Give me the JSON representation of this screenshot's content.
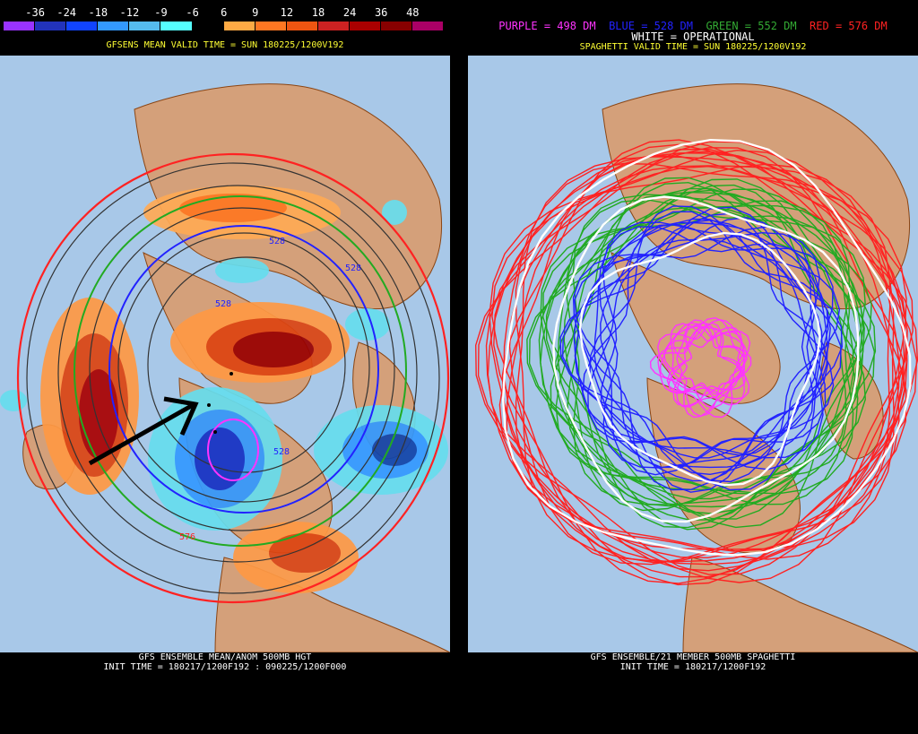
{
  "left_panel": {
    "legend_labels": [
      "-36",
      "-24",
      "-18",
      "-12",
      "-9",
      "-6",
      "6",
      "9",
      "12",
      "18",
      "24",
      "36",
      "48"
    ],
    "legend_colors": [
      "#9933ff",
      "#2233bb",
      "#1144ff",
      "#3399ff",
      "#55bbee",
      "#55ffff",
      "#000000",
      "#ffaa44",
      "#ff7722",
      "#ee5511",
      "#cc2222",
      "#aa0000",
      "#880000",
      "#aa0066"
    ],
    "header": "GFSENS MEAN VALID TIME = SUN 180225/1200V192",
    "footer_line1": "GFS ENSEMBLE MEAN/ANOM 500MB HGT",
    "footer_line2": "INIT TIME = 180217/1200F192 : 090225/1200F000",
    "contour_labels": [
      "528",
      "528",
      "528",
      "528",
      "576"
    ]
  },
  "right_panel": {
    "legend_items": [
      {
        "text": "PURPLE = 498 DM",
        "color": "#ff33ff"
      },
      {
        "text": "BLUE = 528 DM",
        "color": "#2222ff"
      },
      {
        "text": "GREEN = 552 DM",
        "color": "#33aa33"
      },
      {
        "text": "RED = 576 DM",
        "color": "#ff2222"
      }
    ],
    "operational_line": "WHITE = OPERATIONAL",
    "header": "SPAGHETTI VALID TIME = SUN 180225/1200V192",
    "footer_line1": "GFS ENSEMBLE/21 MEMBER 500MB SPAGHETTI",
    "footer_line2": "INIT TIME = 180217/1200F192"
  },
  "colors": {
    "ocean": "#a8c8e8",
    "land": "#d4a07a",
    "border": "#8b4513"
  }
}
